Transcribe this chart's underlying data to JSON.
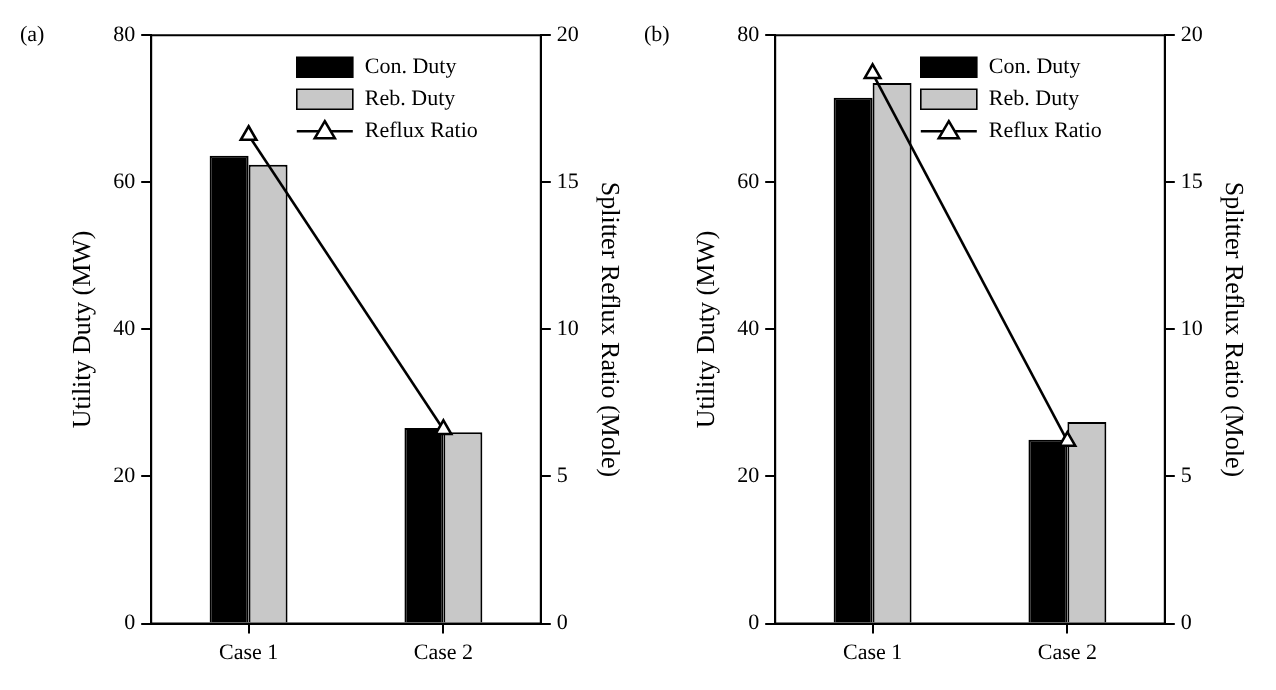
{
  "chart_data": [
    {
      "type": "bar",
      "title": "(a)",
      "categories": [
        "Case 1",
        "Case 2"
      ],
      "ylabel": "Utility Duty (MW)",
      "y2label": "Splitter Reflux Ratio (Mole)",
      "ylim": [
        0,
        80
      ],
      "yticks": [
        0,
        20,
        40,
        60,
        80
      ],
      "y2lim": [
        0,
        20
      ],
      "y2ticks": [
        0,
        5,
        10,
        15,
        20
      ],
      "grid": false,
      "legend": "top right",
      "series": [
        {
          "name": "Con. Duty",
          "color": "#000000",
          "values": [
            63.6,
            26.6
          ]
        },
        {
          "name": "Reb. Duty",
          "color": "#c8c8c8",
          "values": [
            62.4,
            26.0
          ]
        },
        {
          "name": "Reflux Ratio",
          "type": "line",
          "axis": "y2",
          "color": "#000000",
          "marker": "triangle",
          "line_style": "solid",
          "values": [
            16.6,
            6.6
          ]
        }
      ]
    },
    {
      "type": "bar",
      "title": "(b)",
      "categories": [
        "Case 1",
        "Case 2"
      ],
      "ylabel": "Utility Duty (MW)",
      "y2label": "Splitter Reflux Ratio (Mole)",
      "ylim": [
        0,
        80
      ],
      "yticks": [
        0,
        20,
        40,
        60,
        80
      ],
      "y2lim": [
        0,
        20
      ],
      "y2ticks": [
        0,
        5,
        10,
        15,
        20
      ],
      "grid": false,
      "legend": "top right",
      "series": [
        {
          "name": "Con. Duty",
          "color": "#000000",
          "values": [
            71.5,
            25.0
          ]
        },
        {
          "name": "Reb. Duty",
          "color": "#c8c8c8",
          "values": [
            73.5,
            27.4
          ]
        },
        {
          "name": "Reflux Ratio",
          "type": "line",
          "axis": "y2",
          "color": "#000000",
          "marker": "triangle",
          "line_style": "solid",
          "values": [
            18.7,
            6.2
          ]
        }
      ]
    }
  ]
}
